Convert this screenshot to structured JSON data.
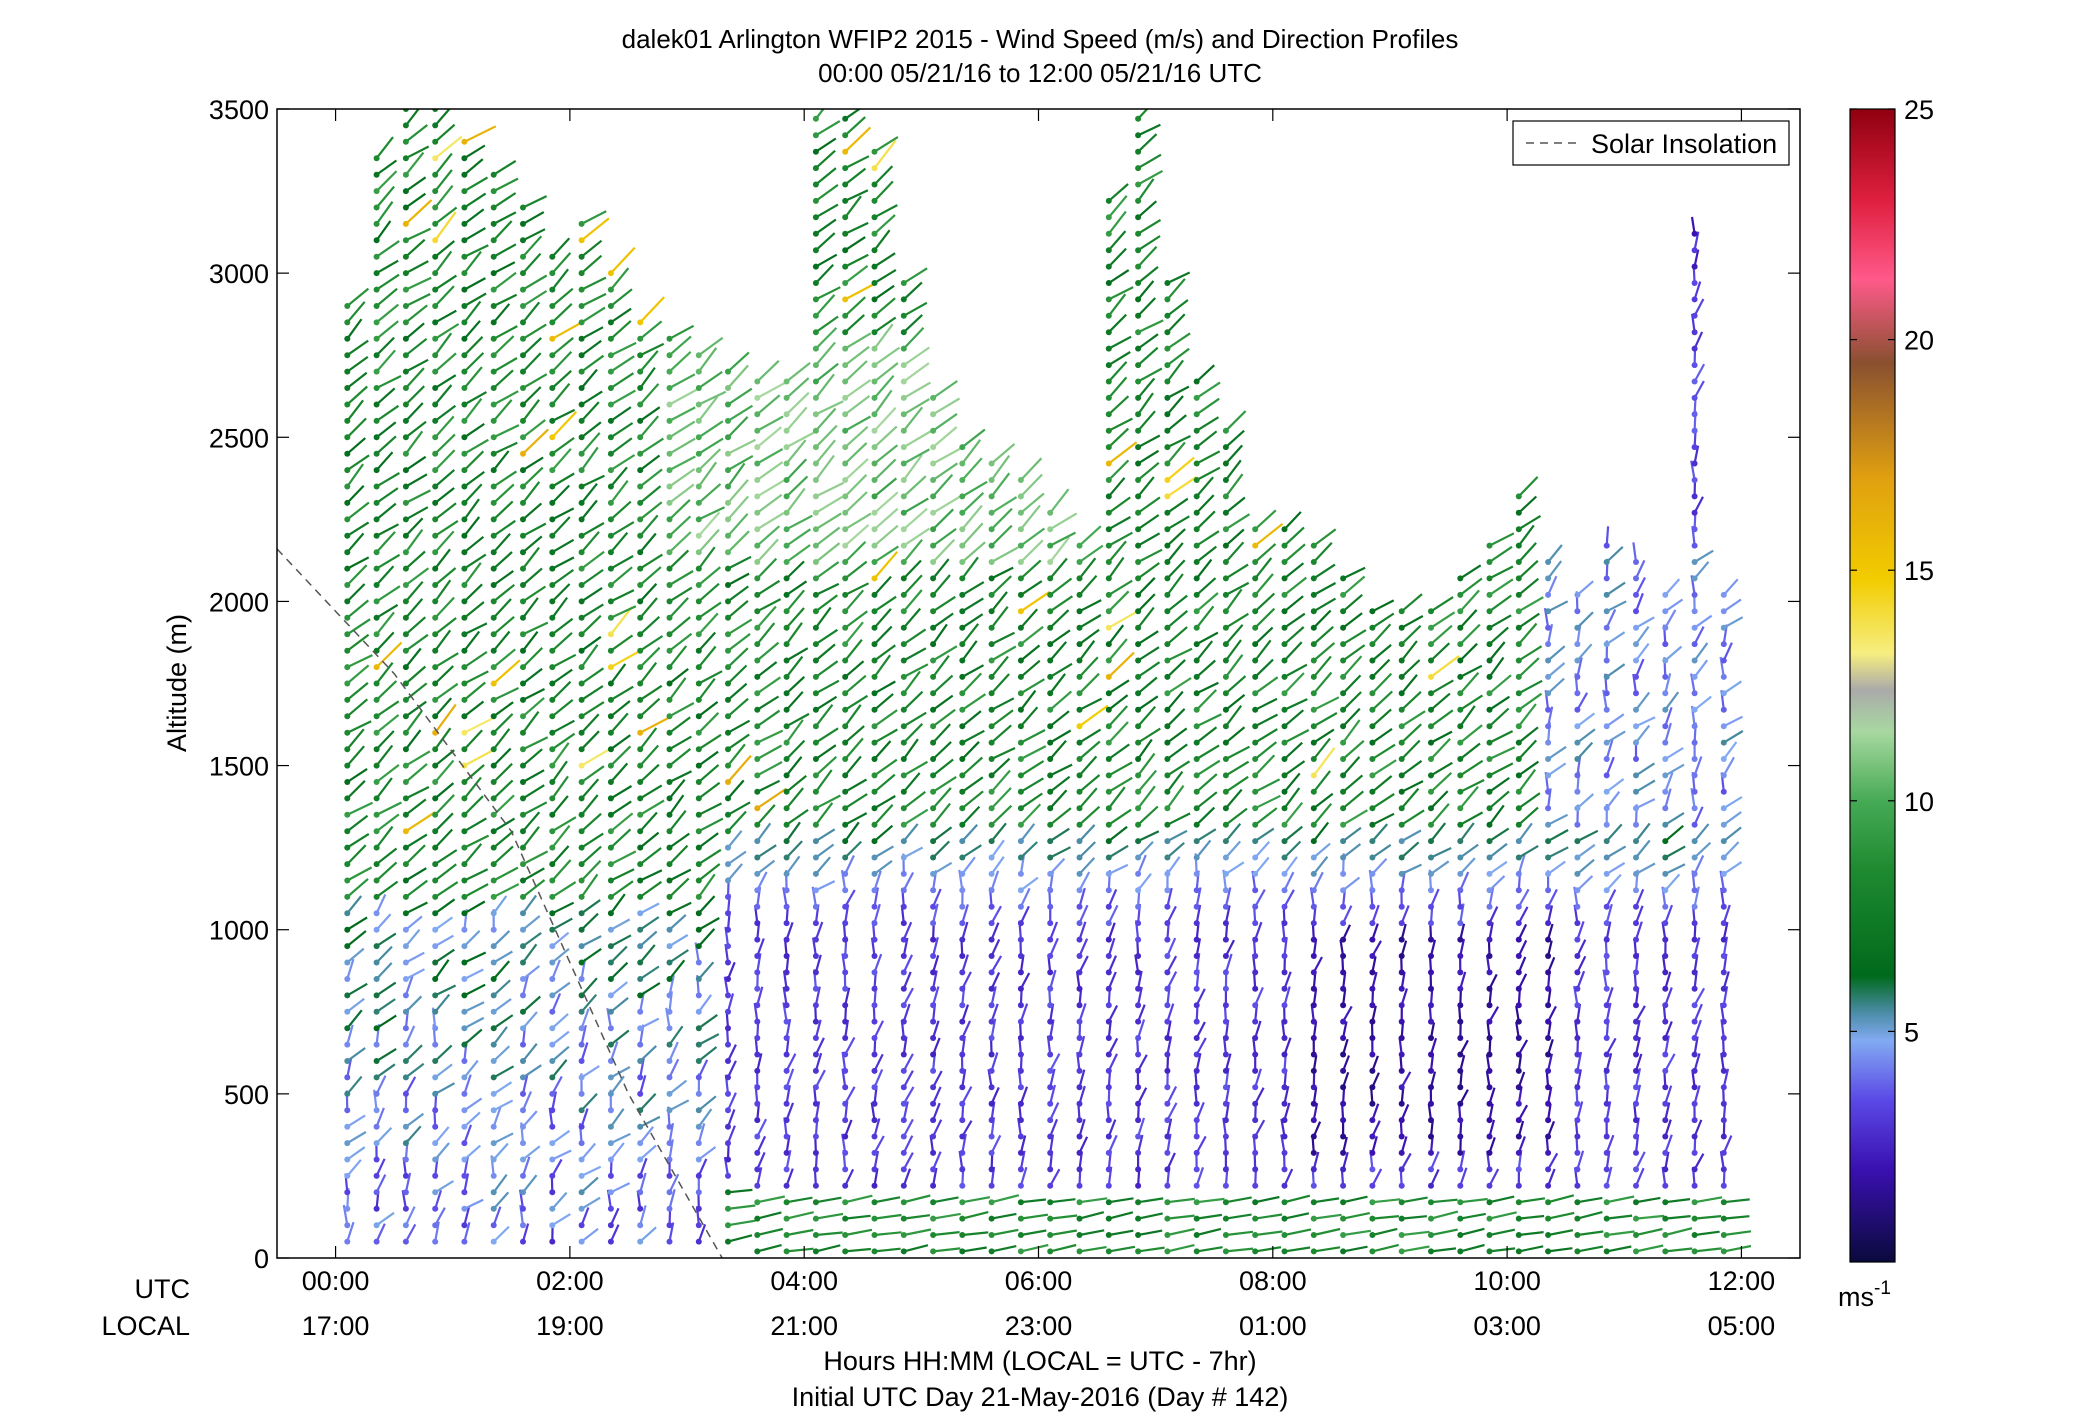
{
  "chart_data": {
    "type": "scatter",
    "subtype": "wind-barb-profile",
    "title": "dalek01 Arlington WFIP2 2015 - Wind Speed (m/s) and Direction Profiles",
    "subtitle": "00:00 05/21/16 to 12:00 05/21/16  UTC",
    "ylabel": "Altitude (m)",
    "xlabel": "Hours HH:MM  (LOCAL = UTC - 7hr)",
    "xlabel2": "Initial UTC Day 21-May-2016 (Day # 142)",
    "xaxis_row_labels": [
      "UTC",
      "LOCAL"
    ],
    "x_ticks_utc": [
      "00:00",
      "02:00",
      "04:00",
      "06:00",
      "08:00",
      "10:00",
      "12:00"
    ],
    "x_ticks_local": [
      "17:00",
      "19:00",
      "21:00",
      "23:00",
      "01:00",
      "03:00",
      "05:00"
    ],
    "xlim_hours": [
      -0.5,
      12.5
    ],
    "ylim": [
      0,
      3500
    ],
    "y_ticks": [
      "0",
      "500",
      "1000",
      "1500",
      "2000",
      "2500",
      "3000",
      "3500"
    ],
    "y_tick_values": [
      0,
      500,
      1000,
      1500,
      2000,
      2500,
      3000,
      3500
    ],
    "grid": false,
    "legend": {
      "placement": "top-right",
      "entries": [
        "Solar Insolation"
      ]
    },
    "solar_insolation_line": {
      "style": "dashed",
      "color": "#555555",
      "x": [
        -0.5,
        0.5,
        1.5,
        2.5,
        3.3
      ],
      "y": [
        2160,
        1780,
        1300,
        500,
        0
      ]
    },
    "colorbar": {
      "label": "ms",
      "label_exponent": "-1",
      "range": [
        0,
        25
      ],
      "ticks": [
        "5",
        "10",
        "15",
        "20",
        "25"
      ],
      "tick_values": [
        5,
        10,
        15,
        20,
        25
      ],
      "stops": [
        {
          "v": 0,
          "c": "#0a0a3c"
        },
        {
          "v": 2,
          "c": "#3a10b0"
        },
        {
          "v": 3.5,
          "c": "#5a48e6"
        },
        {
          "v": 4.8,
          "c": "#82aaf2"
        },
        {
          "v": 5.4,
          "c": "#4c8ca8"
        },
        {
          "v": 6.2,
          "c": "#006a1c"
        },
        {
          "v": 8.5,
          "c": "#1e8a30"
        },
        {
          "v": 10,
          "c": "#46aa55"
        },
        {
          "v": 11.5,
          "c": "#a8d8a0"
        },
        {
          "v": 12.4,
          "c": "#aaaaaa"
        },
        {
          "v": 13.2,
          "c": "#f6ee80"
        },
        {
          "v": 14.8,
          "c": "#f2cc00"
        },
        {
          "v": 17,
          "c": "#e0a010"
        },
        {
          "v": 19.5,
          "c": "#8a5030"
        },
        {
          "v": 21.3,
          "c": "#ff5a8a"
        },
        {
          "v": 23,
          "c": "#e02040"
        },
        {
          "v": 25,
          "c": "#900010"
        }
      ]
    },
    "profile_times_hours": [
      0.1,
      0.35,
      0.6,
      0.85,
      1.1,
      1.35,
      1.6,
      1.85,
      2.1,
      2.35,
      2.6,
      2.85,
      3.1,
      3.35,
      3.6,
      3.85,
      4.1,
      4.35,
      4.6,
      4.85,
      5.1,
      5.35,
      5.6,
      5.85,
      6.1,
      6.35,
      6.6,
      6.85,
      7.1,
      7.35,
      7.6,
      7.85,
      8.1,
      8.35,
      8.6,
      8.85,
      9.1,
      9.35,
      9.6,
      9.85,
      10.1,
      10.35,
      10.6,
      10.85,
      11.1,
      11.35,
      11.6,
      11.85
    ],
    "profile_top_altitudes_m": [
      2900,
      3350,
      3500,
      3500,
      3420,
      3300,
      3200,
      3050,
      3180,
      3000,
      2850,
      2800,
      2780,
      2720,
      2700,
      2700,
      3500,
      3500,
      3400,
      3000,
      2620,
      2500,
      2450,
      2400,
      2300,
      2200,
      3250,
      3500,
      3000,
      2700,
      2550,
      2250,
      2250,
      2180,
      2070,
      2000,
      2000,
      1980,
      2100,
      2200,
      2320,
      2150,
      2050,
      2200,
      2150,
      2050,
      3150,
      2020
    ],
    "profile_bottom_altitudes_m": [
      50,
      50,
      50,
      50,
      50,
      50,
      50,
      50,
      50,
      50,
      50,
      50,
      50,
      50,
      20,
      20,
      20,
      20,
      20,
      20,
      20,
      20,
      20,
      20,
      20,
      20,
      20,
      20,
      20,
      20,
      20,
      20,
      20,
      20,
      20,
      20,
      20,
      20,
      20,
      20,
      20,
      20,
      20,
      20,
      20,
      20,
      20,
      20
    ],
    "range_gate_spacing_m": 50
  }
}
